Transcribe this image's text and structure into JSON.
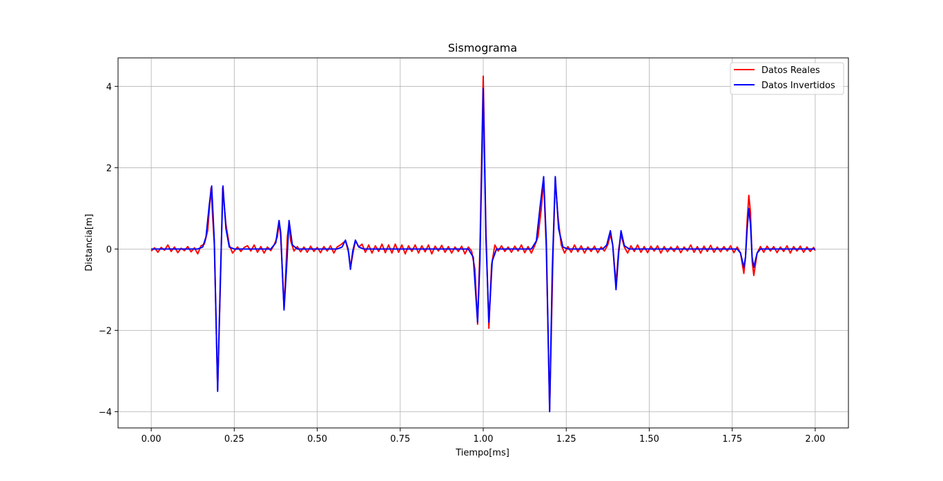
{
  "chart_data": {
    "type": "line",
    "title": "Sismograma",
    "xlabel": "Tiempo[ms]",
    "ylabel": "Distancia[m]",
    "xlim": [
      -0.1,
      2.1
    ],
    "ylim": [
      -4.4,
      4.7
    ],
    "xticks": [
      0.0,
      0.25,
      0.5,
      0.75,
      1.0,
      1.25,
      1.5,
      1.75,
      2.0
    ],
    "xtick_labels": [
      "0.00",
      "0.25",
      "0.50",
      "0.75",
      "1.00",
      "1.25",
      "1.50",
      "1.75",
      "2.00"
    ],
    "yticks": [
      -4,
      -2,
      0,
      2,
      4
    ],
    "ytick_labels": [
      "−4",
      "−2",
      "0",
      "2",
      "4"
    ],
    "grid": true,
    "legend_position": "top-right",
    "series": [
      {
        "name": "Datos Reales",
        "color": "#ff0000",
        "points": [
          [
            0.0,
            -0.05
          ],
          [
            0.01,
            0.03
          ],
          [
            0.02,
            -0.08
          ],
          [
            0.03,
            0.04
          ],
          [
            0.04,
            -0.03
          ],
          [
            0.05,
            0.1
          ],
          [
            0.06,
            -0.06
          ],
          [
            0.07,
            0.05
          ],
          [
            0.08,
            -0.09
          ],
          [
            0.09,
            0.02
          ],
          [
            0.1,
            -0.04
          ],
          [
            0.11,
            0.06
          ],
          [
            0.12,
            -0.07
          ],
          [
            0.13,
            0.03
          ],
          [
            0.14,
            -0.12
          ],
          [
            0.15,
            0.08
          ],
          [
            0.16,
            0.12
          ],
          [
            0.17,
            0.45
          ],
          [
            0.18,
            1.5
          ],
          [
            0.19,
            0.1
          ],
          [
            0.2,
            -3.45
          ],
          [
            0.21,
            -0.3
          ],
          [
            0.215,
            1.5
          ],
          [
            0.225,
            0.6
          ],
          [
            0.235,
            0.1
          ],
          [
            0.245,
            -0.1
          ],
          [
            0.26,
            0.05
          ],
          [
            0.27,
            -0.06
          ],
          [
            0.28,
            0.04
          ],
          [
            0.29,
            0.08
          ],
          [
            0.3,
            -0.05
          ],
          [
            0.31,
            0.1
          ],
          [
            0.32,
            -0.08
          ],
          [
            0.33,
            0.06
          ],
          [
            0.34,
            -0.1
          ],
          [
            0.35,
            0.05
          ],
          [
            0.36,
            -0.04
          ],
          [
            0.37,
            0.1
          ],
          [
            0.38,
            0.3
          ],
          [
            0.385,
            0.65
          ],
          [
            0.39,
            0.3
          ],
          [
            0.4,
            -1.45
          ],
          [
            0.405,
            -0.6
          ],
          [
            0.41,
            0.3
          ],
          [
            0.415,
            0.65
          ],
          [
            0.42,
            0.2
          ],
          [
            0.43,
            -0.05
          ],
          [
            0.44,
            0.06
          ],
          [
            0.45,
            -0.07
          ],
          [
            0.46,
            0.05
          ],
          [
            0.47,
            -0.08
          ],
          [
            0.48,
            0.07
          ],
          [
            0.49,
            -0.06
          ],
          [
            0.5,
            0.04
          ],
          [
            0.51,
            -0.09
          ],
          [
            0.52,
            0.06
          ],
          [
            0.53,
            -0.05
          ],
          [
            0.54,
            0.08
          ],
          [
            0.55,
            -0.1
          ],
          [
            0.56,
            0.05
          ],
          [
            0.57,
            0.1
          ],
          [
            0.585,
            0.2
          ],
          [
            0.595,
            -0.1
          ],
          [
            0.6,
            -0.45
          ],
          [
            0.61,
            0.0
          ],
          [
            0.615,
            0.2
          ],
          [
            0.625,
            0.05
          ],
          [
            0.635,
            0.12
          ],
          [
            0.645,
            -0.08
          ],
          [
            0.655,
            0.1
          ],
          [
            0.665,
            -0.1
          ],
          [
            0.675,
            0.08
          ],
          [
            0.685,
            -0.06
          ],
          [
            0.695,
            0.12
          ],
          [
            0.705,
            -0.09
          ],
          [
            0.715,
            0.1
          ],
          [
            0.725,
            -0.1
          ],
          [
            0.735,
            0.12
          ],
          [
            0.745,
            -0.08
          ],
          [
            0.755,
            0.1
          ],
          [
            0.765,
            -0.12
          ],
          [
            0.775,
            0.08
          ],
          [
            0.785,
            -0.06
          ],
          [
            0.795,
            0.1
          ],
          [
            0.805,
            -0.1
          ],
          [
            0.815,
            0.08
          ],
          [
            0.825,
            -0.07
          ],
          [
            0.835,
            0.1
          ],
          [
            0.845,
            -0.12
          ],
          [
            0.855,
            0.07
          ],
          [
            0.865,
            -0.05
          ],
          [
            0.875,
            0.09
          ],
          [
            0.885,
            -0.08
          ],
          [
            0.895,
            0.06
          ],
          [
            0.905,
            -0.1
          ],
          [
            0.915,
            0.05
          ],
          [
            0.925,
            -0.06
          ],
          [
            0.935,
            0.07
          ],
          [
            0.945,
            -0.12
          ],
          [
            0.955,
            0.05
          ],
          [
            0.965,
            -0.05
          ],
          [
            0.975,
            -0.5
          ],
          [
            0.983,
            -1.85
          ],
          [
            0.99,
            0.0
          ],
          [
            1.0,
            4.25
          ],
          [
            1.008,
            0.5
          ],
          [
            1.017,
            -1.95
          ],
          [
            1.025,
            -0.4
          ],
          [
            1.035,
            0.1
          ],
          [
            1.045,
            -0.05
          ],
          [
            1.055,
            0.08
          ],
          [
            1.065,
            -0.06
          ],
          [
            1.075,
            0.05
          ],
          [
            1.085,
            -0.08
          ],
          [
            1.095,
            0.07
          ],
          [
            1.105,
            -0.05
          ],
          [
            1.115,
            0.1
          ],
          [
            1.125,
            -0.09
          ],
          [
            1.135,
            0.06
          ],
          [
            1.145,
            -0.1
          ],
          [
            1.155,
            0.08
          ],
          [
            1.165,
            0.3
          ],
          [
            1.175,
            1.0
          ],
          [
            1.182,
            1.7
          ],
          [
            1.19,
            0.0
          ],
          [
            1.2,
            -3.95
          ],
          [
            1.21,
            -0.2
          ],
          [
            1.217,
            1.7
          ],
          [
            1.225,
            0.8
          ],
          [
            1.235,
            0.1
          ],
          [
            1.245,
            -0.1
          ],
          [
            1.255,
            0.06
          ],
          [
            1.265,
            -0.08
          ],
          [
            1.275,
            0.1
          ],
          [
            1.285,
            -0.07
          ],
          [
            1.295,
            0.08
          ],
          [
            1.305,
            -0.1
          ],
          [
            1.315,
            0.05
          ],
          [
            1.325,
            -0.06
          ],
          [
            1.335,
            0.07
          ],
          [
            1.345,
            -0.09
          ],
          [
            1.355,
            0.05
          ],
          [
            1.365,
            -0.05
          ],
          [
            1.375,
            0.1
          ],
          [
            1.383,
            0.35
          ],
          [
            1.39,
            0.1
          ],
          [
            1.4,
            -0.85
          ],
          [
            1.408,
            0.0
          ],
          [
            1.415,
            0.35
          ],
          [
            1.425,
            0.05
          ],
          [
            1.435,
            -0.1
          ],
          [
            1.445,
            0.08
          ],
          [
            1.455,
            -0.06
          ],
          [
            1.465,
            0.1
          ],
          [
            1.475,
            -0.08
          ],
          [
            1.485,
            0.06
          ],
          [
            1.495,
            -0.09
          ],
          [
            1.505,
            0.07
          ],
          [
            1.515,
            -0.05
          ],
          [
            1.525,
            0.08
          ],
          [
            1.535,
            -0.1
          ],
          [
            1.545,
            0.06
          ],
          [
            1.555,
            -0.07
          ],
          [
            1.565,
            0.05
          ],
          [
            1.575,
            -0.06
          ],
          [
            1.585,
            0.07
          ],
          [
            1.595,
            -0.09
          ],
          [
            1.605,
            0.05
          ],
          [
            1.615,
            -0.05
          ],
          [
            1.625,
            0.1
          ],
          [
            1.635,
            -0.08
          ],
          [
            1.645,
            0.06
          ],
          [
            1.655,
            -0.1
          ],
          [
            1.665,
            0.07
          ],
          [
            1.675,
            -0.06
          ],
          [
            1.685,
            0.09
          ],
          [
            1.695,
            -0.08
          ],
          [
            1.705,
            0.05
          ],
          [
            1.715,
            -0.07
          ],
          [
            1.725,
            0.06
          ],
          [
            1.735,
            -0.05
          ],
          [
            1.745,
            0.08
          ],
          [
            1.755,
            -0.09
          ],
          [
            1.765,
            0.05
          ],
          [
            1.775,
            -0.1
          ],
          [
            1.785,
            -0.6
          ],
          [
            1.79,
            -0.2
          ],
          [
            1.795,
            0.7
          ],
          [
            1.8,
            1.32
          ],
          [
            1.805,
            0.9
          ],
          [
            1.81,
            -0.3
          ],
          [
            1.815,
            -0.65
          ],
          [
            1.825,
            -0.1
          ],
          [
            1.835,
            0.06
          ],
          [
            1.845,
            -0.08
          ],
          [
            1.855,
            0.07
          ],
          [
            1.865,
            -0.05
          ],
          [
            1.875,
            0.06
          ],
          [
            1.885,
            -0.09
          ],
          [
            1.895,
            0.05
          ],
          [
            1.905,
            -0.06
          ],
          [
            1.915,
            0.08
          ],
          [
            1.925,
            -0.1
          ],
          [
            1.935,
            0.06
          ],
          [
            1.945,
            -0.05
          ],
          [
            1.955,
            0.07
          ],
          [
            1.965,
            -0.08
          ],
          [
            1.975,
            0.05
          ],
          [
            1.985,
            -0.06
          ],
          [
            1.995,
            0.04
          ],
          [
            2.0,
            -0.04
          ]
        ]
      },
      {
        "name": "Datos Invertidos",
        "color": "#0000ff",
        "points": [
          [
            0.0,
            0.0
          ],
          [
            0.14,
            0.0
          ],
          [
            0.155,
            0.05
          ],
          [
            0.165,
            0.3
          ],
          [
            0.175,
            1.1
          ],
          [
            0.182,
            1.55
          ],
          [
            0.19,
            0.2
          ],
          [
            0.2,
            -3.5
          ],
          [
            0.208,
            -0.8
          ],
          [
            0.216,
            1.55
          ],
          [
            0.225,
            0.5
          ],
          [
            0.235,
            0.05
          ],
          [
            0.25,
            0.0
          ],
          [
            0.36,
            0.0
          ],
          [
            0.375,
            0.15
          ],
          [
            0.385,
            0.7
          ],
          [
            0.39,
            0.4
          ],
          [
            0.4,
            -1.5
          ],
          [
            0.408,
            -0.4
          ],
          [
            0.415,
            0.7
          ],
          [
            0.425,
            0.1
          ],
          [
            0.44,
            0.0
          ],
          [
            0.56,
            0.0
          ],
          [
            0.575,
            0.05
          ],
          [
            0.585,
            0.22
          ],
          [
            0.593,
            0.0
          ],
          [
            0.6,
            -0.5
          ],
          [
            0.607,
            -0.05
          ],
          [
            0.615,
            0.22
          ],
          [
            0.625,
            0.05
          ],
          [
            0.64,
            0.0
          ],
          [
            0.955,
            0.0
          ],
          [
            0.97,
            -0.2
          ],
          [
            0.983,
            -1.8
          ],
          [
            0.99,
            -0.3
          ],
          [
            1.0,
            3.95
          ],
          [
            1.008,
            0.3
          ],
          [
            1.017,
            -1.8
          ],
          [
            1.027,
            -0.3
          ],
          [
            1.04,
            0.0
          ],
          [
            1.145,
            0.0
          ],
          [
            1.16,
            0.2
          ],
          [
            1.172,
            1.1
          ],
          [
            1.182,
            1.78
          ],
          [
            1.19,
            0.2
          ],
          [
            1.2,
            -4.0
          ],
          [
            1.208,
            -0.5
          ],
          [
            1.217,
            1.78
          ],
          [
            1.227,
            0.5
          ],
          [
            1.24,
            0.05
          ],
          [
            1.255,
            0.0
          ],
          [
            1.36,
            0.0
          ],
          [
            1.372,
            0.1
          ],
          [
            1.383,
            0.45
          ],
          [
            1.39,
            0.1
          ],
          [
            1.4,
            -1.0
          ],
          [
            1.408,
            -0.1
          ],
          [
            1.415,
            0.45
          ],
          [
            1.425,
            0.08
          ],
          [
            1.44,
            0.0
          ],
          [
            1.765,
            0.0
          ],
          [
            1.775,
            -0.1
          ],
          [
            1.785,
            -0.45
          ],
          [
            1.79,
            -0.2
          ],
          [
            1.795,
            0.5
          ],
          [
            1.8,
            1.0
          ],
          [
            1.805,
            0.6
          ],
          [
            1.81,
            -0.2
          ],
          [
            1.815,
            -0.45
          ],
          [
            1.825,
            -0.1
          ],
          [
            1.835,
            0.0
          ],
          [
            2.0,
            0.0
          ]
        ]
      }
    ]
  }
}
